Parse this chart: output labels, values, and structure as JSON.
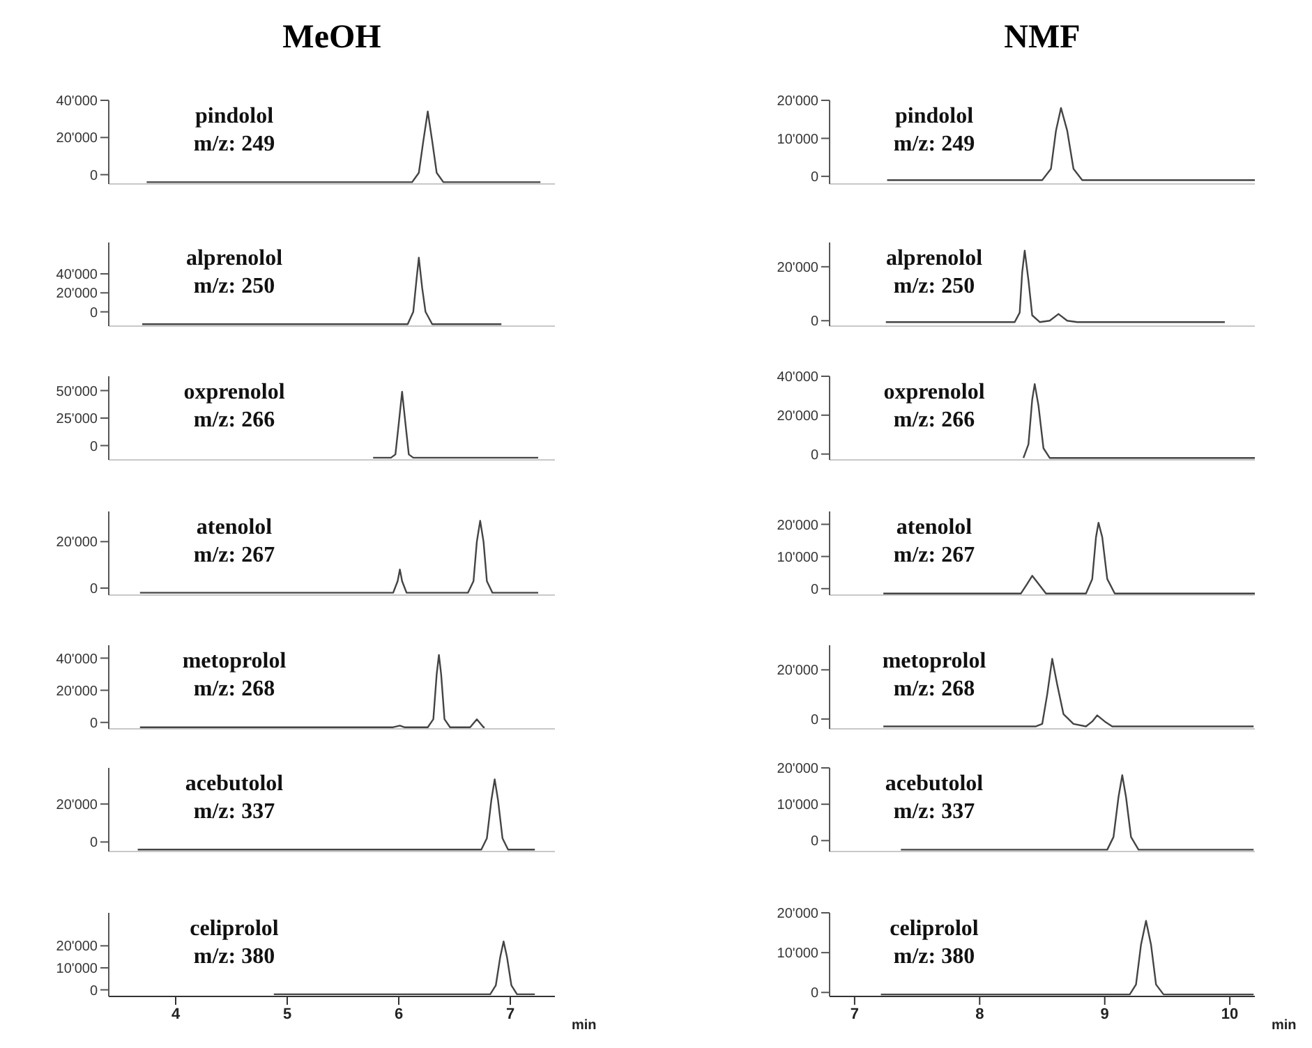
{
  "chart_data": [
    {
      "type": "line",
      "title": "MeOH",
      "annotations": [
        "pindolol",
        "m/z: 249"
      ],
      "color": "#444444",
      "xlim": [
        3.4,
        7.4
      ],
      "ylim": [
        -5000,
        40000
      ],
      "yticks": [
        {
          "value": 0,
          "label": "0"
        },
        {
          "value": 20000,
          "label": "20'000"
        },
        {
          "value": 40000,
          "label": "40'000"
        }
      ],
      "tick_labels": "y",
      "x": [
        3.74,
        6.12,
        6.18,
        6.22,
        6.26,
        6.3,
        6.34,
        6.4,
        7.27
      ],
      "values": [
        -4000,
        -4000,
        1000,
        18000,
        34000,
        18000,
        1000,
        -4000,
        -4000
      ]
    },
    {
      "type": "line",
      "title": "NMF",
      "annotations": [
        "pindolol",
        "m/z: 249"
      ],
      "color": "#444444",
      "xlim": [
        6.8,
        10.2
      ],
      "ylim": [
        -2000,
        20000
      ],
      "yticks": [
        {
          "value": 0,
          "label": "0"
        },
        {
          "value": 10000,
          "label": "10'000"
        },
        {
          "value": 20000,
          "label": "20'000"
        }
      ],
      "tick_labels": "y",
      "x": [
        7.26,
        8.5,
        8.57,
        8.61,
        8.65,
        8.7,
        8.75,
        8.82,
        10.2
      ],
      "values": [
        -1000,
        -1000,
        2000,
        12000,
        18000,
        12000,
        2000,
        -1000,
        -1000
      ]
    },
    {
      "type": "line",
      "annotations": [
        "alprenolol",
        "m/z: 250"
      ],
      "color": "#444444",
      "xlim": [
        3.4,
        7.4
      ],
      "ylim": [
        -15000,
        73000
      ],
      "yticks": [
        {
          "value": 0,
          "label": "0"
        },
        {
          "value": 20000,
          "label": "20'000"
        },
        {
          "value": 40000,
          "label": "40'000"
        }
      ],
      "tick_labels": "y",
      "x": [
        3.7,
        6.08,
        6.13,
        6.16,
        6.18,
        6.21,
        6.24,
        6.3,
        6.92
      ],
      "values": [
        -13000,
        -13000,
        0,
        35000,
        57000,
        25000,
        0,
        -13000,
        -13000
      ]
    },
    {
      "type": "line",
      "annotations": [
        "alprenolol",
        "m/z: 250"
      ],
      "color": "#444444",
      "xlim": [
        6.8,
        10.2
      ],
      "ylim": [
        -2000,
        29000
      ],
      "yticks": [
        {
          "value": 0,
          "label": "0"
        },
        {
          "value": 20000,
          "label": "20'000"
        }
      ],
      "tick_labels": "y",
      "x": [
        7.25,
        8.28,
        8.32,
        8.34,
        8.36,
        8.39,
        8.42,
        8.48,
        8.56,
        8.63,
        8.7,
        8.78,
        9.96
      ],
      "values": [
        -500,
        -500,
        3000,
        18000,
        26000,
        15000,
        2000,
        -500,
        0,
        2500,
        0,
        -500,
        -500
      ]
    },
    {
      "type": "line",
      "annotations": [
        "oxprenolol",
        "m/z: 266"
      ],
      "color": "#444444",
      "xlim": [
        3.4,
        7.4
      ],
      "ylim": [
        -13000,
        63000
      ],
      "yticks": [
        {
          "value": 0,
          "label": "0"
        },
        {
          "value": 25000,
          "label": "25'000"
        },
        {
          "value": 50000,
          "label": "50'000"
        }
      ],
      "tick_labels": "y",
      "x": [
        5.77,
        5.93,
        5.97,
        6.0,
        6.03,
        6.06,
        6.09,
        6.13,
        7.25
      ],
      "values": [
        -11000,
        -11000,
        -8000,
        20000,
        49000,
        20000,
        -8000,
        -11000,
        -11000
      ]
    },
    {
      "type": "line",
      "annotations": [
        "oxprenolol",
        "m/z: 266"
      ],
      "color": "#444444",
      "xlim": [
        6.8,
        10.2
      ],
      "ylim": [
        -3000,
        40000
      ],
      "yticks": [
        {
          "value": 0,
          "label": "0"
        },
        {
          "value": 20000,
          "label": "20'000"
        },
        {
          "value": 40000,
          "label": "40'000"
        }
      ],
      "tick_labels": "y",
      "x": [
        8.35,
        8.39,
        8.42,
        8.44,
        8.47,
        8.51,
        8.56,
        10.2
      ],
      "values": [
        -2000,
        5000,
        28000,
        36000,
        25000,
        3000,
        -2000,
        -2000
      ]
    },
    {
      "type": "line",
      "annotations": [
        "atenolol",
        "m/z: 267"
      ],
      "color": "#444444",
      "xlim": [
        3.4,
        7.4
      ],
      "ylim": [
        -3000,
        33000
      ],
      "yticks": [
        {
          "value": 0,
          "label": "0"
        },
        {
          "value": 20000,
          "label": "20'000"
        }
      ],
      "tick_labels": "y",
      "x": [
        3.68,
        5.95,
        5.99,
        6.01,
        6.03,
        6.07,
        6.62,
        6.67,
        6.7,
        6.73,
        6.76,
        6.79,
        6.84,
        7.25
      ],
      "values": [
        -2000,
        -2000,
        3000,
        8000,
        3000,
        -2000,
        -2000,
        3000,
        20000,
        29000,
        20000,
        3000,
        -2000,
        -2000
      ]
    },
    {
      "type": "line",
      "annotations": [
        "atenolol",
        "m/z: 267"
      ],
      "color": "#444444",
      "xlim": [
        6.8,
        10.2
      ],
      "ylim": [
        -2000,
        24000
      ],
      "yticks": [
        {
          "value": 0,
          "label": "0"
        },
        {
          "value": 10000,
          "label": "10'000"
        },
        {
          "value": 20000,
          "label": "20'000"
        }
      ],
      "tick_labels": "y",
      "x": [
        7.23,
        8.33,
        8.38,
        8.42,
        8.47,
        8.53,
        8.85,
        8.9,
        8.93,
        8.95,
        8.98,
        9.02,
        9.08,
        10.2
      ],
      "values": [
        -1500,
        -1500,
        1500,
        4000,
        1500,
        -1500,
        -1500,
        3000,
        16000,
        20500,
        16000,
        3000,
        -1500,
        -1500
      ]
    },
    {
      "type": "line",
      "annotations": [
        "metoprolol",
        "m/z: 268"
      ],
      "color": "#444444",
      "xlim": [
        3.4,
        7.4
      ],
      "ylim": [
        -4000,
        48000
      ],
      "yticks": [
        {
          "value": 0,
          "label": "0"
        },
        {
          "value": 20000,
          "label": "20'000"
        },
        {
          "value": 40000,
          "label": "40'000"
        }
      ],
      "tick_labels": "y",
      "x": [
        3.68,
        5.95,
        6.01,
        6.05,
        6.26,
        6.31,
        6.34,
        6.36,
        6.38,
        6.41,
        6.46,
        6.64,
        6.7,
        6.76,
        6.77
      ],
      "values": [
        -3000,
        -3000,
        -2000,
        -3000,
        -3000,
        2000,
        30000,
        42000,
        30000,
        2000,
        -3000,
        -3000,
        2000,
        -3000,
        -3000
      ]
    },
    {
      "type": "line",
      "annotations": [
        "metoprolol",
        "m/z: 268"
      ],
      "color": "#444444",
      "xlim": [
        6.8,
        10.2
      ],
      "ylim": [
        -4000,
        30000
      ],
      "yticks": [
        {
          "value": 0,
          "label": "0"
        },
        {
          "value": 20000,
          "label": "20'000"
        }
      ],
      "tick_labels": "y",
      "x": [
        7.23,
        8.45,
        8.5,
        8.54,
        8.58,
        8.62,
        8.67,
        8.75,
        8.85,
        8.9,
        8.94,
        9.0,
        9.06,
        10.19
      ],
      "values": [
        -3000,
        -3000,
        -2000,
        10000,
        24500,
        14000,
        2000,
        -2000,
        -3000,
        -1000,
        1500,
        -1000,
        -3000,
        -3000
      ]
    },
    {
      "type": "line",
      "annotations": [
        "acebutolol",
        "m/z: 337"
      ],
      "color": "#444444",
      "xlim": [
        3.4,
        7.4
      ],
      "ylim": [
        -5000,
        39000
      ],
      "yticks": [
        {
          "value": 0,
          "label": "0"
        },
        {
          "value": 20000,
          "label": "20'000"
        }
      ],
      "tick_labels": "y",
      "x": [
        3.66,
        6.74,
        6.79,
        6.83,
        6.86,
        6.89,
        6.93,
        6.98,
        7.22
      ],
      "values": [
        -4000,
        -4000,
        2000,
        22000,
        33000,
        22000,
        2000,
        -4000,
        -4000
      ]
    },
    {
      "type": "line",
      "annotations": [
        "acebutolol",
        "m/z: 337"
      ],
      "color": "#444444",
      "xlim": [
        6.8,
        10.2
      ],
      "ylim": [
        -3000,
        20000
      ],
      "yticks": [
        {
          "value": 0,
          "label": "0"
        },
        {
          "value": 10000,
          "label": "10'000"
        },
        {
          "value": 20000,
          "label": "20'000"
        }
      ],
      "tick_labels": "y",
      "x": [
        7.37,
        9.02,
        9.07,
        9.11,
        9.14,
        9.17,
        9.21,
        9.27,
        10.19
      ],
      "values": [
        -2500,
        -2500,
        1000,
        12000,
        18000,
        12000,
        1000,
        -2500,
        -2500
      ]
    },
    {
      "type": "line",
      "annotations": [
        "celiprolol",
        "m/z: 380"
      ],
      "color": "#444444",
      "xlim": [
        3.4,
        7.4
      ],
      "ylim": [
        -3000,
        35000
      ],
      "yticks": [
        {
          "value": 0,
          "label": "0"
        },
        {
          "value": 10000,
          "label": "10'000"
        },
        {
          "value": 20000,
          "label": "20'000"
        }
      ],
      "xticks": [
        4,
        5,
        6,
        7
      ],
      "xlabel": "min",
      "x": [
        4.88,
        6.82,
        6.87,
        6.91,
        6.94,
        6.97,
        7.01,
        7.06,
        7.22
      ],
      "values": [
        -2000,
        -2000,
        2000,
        15000,
        22000,
        15000,
        2000,
        -2000,
        -2000
      ]
    },
    {
      "type": "line",
      "annotations": [
        "celiprolol",
        "m/z: 380"
      ],
      "color": "#444444",
      "xlim": [
        6.8,
        10.2
      ],
      "ylim": [
        -1000,
        20000
      ],
      "yticks": [
        {
          "value": 0,
          "label": "0"
        },
        {
          "value": 10000,
          "label": "10'000"
        },
        {
          "value": 20000,
          "label": "20'000"
        }
      ],
      "xticks": [
        7,
        8,
        9,
        10
      ],
      "xlabel": "min",
      "x": [
        7.21,
        9.2,
        9.25,
        9.29,
        9.33,
        9.37,
        9.41,
        9.47,
        10.19
      ],
      "values": [
        -500,
        -500,
        2000,
        12000,
        18000,
        12000,
        2000,
        -500,
        -500
      ]
    }
  ]
}
